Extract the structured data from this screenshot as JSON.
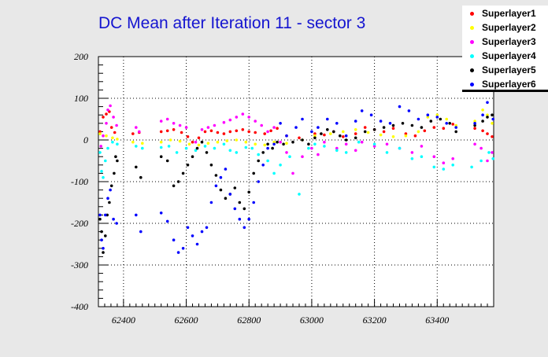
{
  "chart_data": {
    "type": "scatter",
    "title": "DC Mean after Iteration 11 - sector 3",
    "xlabel": "",
    "ylabel": "",
    "xlim": [
      62320,
      63580
    ],
    "ylim": [
      -400,
      200
    ],
    "grid": true,
    "legend_position": "top-right",
    "x_ticks": [
      62400,
      62600,
      62800,
      63000,
      63200,
      63400
    ],
    "y_ticks": [
      -400,
      -300,
      -200,
      -100,
      0,
      100,
      200
    ],
    "series": [
      {
        "name": "Superlayer1",
        "color": "#ff0000",
        "points": [
          [
            62325,
            20
          ],
          [
            62335,
            55
          ],
          [
            62345,
            62
          ],
          [
            62355,
            68
          ],
          [
            62362,
            30
          ],
          [
            62372,
            18
          ],
          [
            62430,
            15
          ],
          [
            62450,
            18
          ],
          [
            62520,
            20
          ],
          [
            62540,
            22
          ],
          [
            62560,
            25
          ],
          [
            62585,
            18
          ],
          [
            62605,
            8
          ],
          [
            62620,
            -5
          ],
          [
            62640,
            5
          ],
          [
            62660,
            20
          ],
          [
            62680,
            22
          ],
          [
            62700,
            18
          ],
          [
            62720,
            15
          ],
          [
            62740,
            20
          ],
          [
            62760,
            22
          ],
          [
            62780,
            25
          ],
          [
            62800,
            20
          ],
          [
            62820,
            18
          ],
          [
            62850,
            15
          ],
          [
            62870,
            22
          ],
          [
            62890,
            28
          ],
          [
            62920,
            10
          ],
          [
            62960,
            5
          ],
          [
            63010,
            15
          ],
          [
            63040,
            12
          ],
          [
            63070,
            20
          ],
          [
            63100,
            8
          ],
          [
            63140,
            15
          ],
          [
            63170,
            30
          ],
          [
            63200,
            25
          ],
          [
            63230,
            20
          ],
          [
            63260,
            28
          ],
          [
            63300,
            15
          ],
          [
            63330,
            10
          ],
          [
            63360,
            22
          ],
          [
            63390,
            30
          ],
          [
            63420,
            28
          ],
          [
            63450,
            38
          ],
          [
            63520,
            28
          ],
          [
            63545,
            22
          ],
          [
            63560,
            15
          ],
          [
            63575,
            8
          ]
        ]
      },
      {
        "name": "Superlayer2",
        "color": "#ffff00",
        "points": [
          [
            62325,
            15
          ],
          [
            62345,
            10
          ],
          [
            62365,
            5
          ],
          [
            62380,
            2
          ],
          [
            62430,
            -5
          ],
          [
            62460,
            -8
          ],
          [
            62520,
            -5
          ],
          [
            62550,
            0
          ],
          [
            62580,
            -3
          ],
          [
            62610,
            -10
          ],
          [
            62640,
            -12
          ],
          [
            62670,
            -8
          ],
          [
            62700,
            -5
          ],
          [
            62730,
            -2
          ],
          [
            62760,
            0
          ],
          [
            62790,
            -5
          ],
          [
            62820,
            -10
          ],
          [
            62850,
            -12
          ],
          [
            62880,
            -5
          ],
          [
            62920,
            -8
          ],
          [
            62970,
            0
          ],
          [
            63010,
            10
          ],
          [
            63060,
            15
          ],
          [
            63100,
            20
          ],
          [
            63140,
            25
          ],
          [
            63180,
            18
          ],
          [
            63220,
            12
          ],
          [
            63260,
            8
          ],
          [
            63300,
            10
          ],
          [
            63340,
            20
          ],
          [
            63370,
            55
          ],
          [
            63400,
            60
          ],
          [
            63430,
            50
          ],
          [
            63460,
            35
          ],
          [
            63520,
            45
          ],
          [
            63545,
            72
          ],
          [
            63560,
            60
          ],
          [
            63575,
            40
          ]
        ]
      },
      {
        "name": "Superlayer3",
        "color": "#ff00ff",
        "points": [
          [
            62328,
            -15
          ],
          [
            62335,
            10
          ],
          [
            62345,
            40
          ],
          [
            62350,
            72
          ],
          [
            62358,
            82
          ],
          [
            62368,
            55
          ],
          [
            62378,
            35
          ],
          [
            62440,
            30
          ],
          [
            62450,
            20
          ],
          [
            62520,
            45
          ],
          [
            62540,
            50
          ],
          [
            62560,
            40
          ],
          [
            62580,
            35
          ],
          [
            62600,
            30
          ],
          [
            62630,
            -5
          ],
          [
            62650,
            25
          ],
          [
            62670,
            30
          ],
          [
            62690,
            35
          ],
          [
            62720,
            42
          ],
          [
            62740,
            48
          ],
          [
            62760,
            55
          ],
          [
            62780,
            62
          ],
          [
            62800,
            55
          ],
          [
            62820,
            45
          ],
          [
            62840,
            35
          ],
          [
            62860,
            20
          ],
          [
            62880,
            30
          ],
          [
            62900,
            -5
          ],
          [
            62920,
            -30
          ],
          [
            62940,
            -80
          ],
          [
            62970,
            -40
          ],
          [
            63000,
            -20
          ],
          [
            63020,
            -35
          ],
          [
            63040,
            -5
          ],
          [
            63080,
            -20
          ],
          [
            63110,
            -10
          ],
          [
            63140,
            -25
          ],
          [
            63160,
            -5
          ],
          [
            63200,
            -15
          ],
          [
            63240,
            -10
          ],
          [
            63280,
            -20
          ],
          [
            63320,
            -30
          ],
          [
            63350,
            -15
          ],
          [
            63390,
            -40
          ],
          [
            63420,
            -55
          ],
          [
            63450,
            -45
          ],
          [
            63520,
            -10
          ],
          [
            63540,
            -20
          ],
          [
            63560,
            -50
          ],
          [
            63575,
            -30
          ]
        ]
      },
      {
        "name": "Superlayer4",
        "color": "#00ffff",
        "points": [
          [
            62325,
            -30
          ],
          [
            62330,
            -75
          ],
          [
            62335,
            -90
          ],
          [
            62342,
            -50
          ],
          [
            62350,
            -20
          ],
          [
            62365,
            -5
          ],
          [
            62380,
            -10
          ],
          [
            62440,
            -15
          ],
          [
            62460,
            -20
          ],
          [
            62520,
            -18
          ],
          [
            62545,
            -15
          ],
          [
            62570,
            -30
          ],
          [
            62600,
            -20
          ],
          [
            62630,
            -25
          ],
          [
            62660,
            -15
          ],
          [
            62690,
            -20
          ],
          [
            62720,
            -10
          ],
          [
            62740,
            -25
          ],
          [
            62760,
            -30
          ],
          [
            62790,
            -18
          ],
          [
            62810,
            -20
          ],
          [
            62830,
            -35
          ],
          [
            62860,
            -50
          ],
          [
            62880,
            -80
          ],
          [
            62900,
            -60
          ],
          [
            62930,
            -40
          ],
          [
            62960,
            -130
          ],
          [
            62990,
            -20
          ],
          [
            63010,
            -10
          ],
          [
            63040,
            -15
          ],
          [
            63080,
            -25
          ],
          [
            63110,
            -30
          ],
          [
            63150,
            -5
          ],
          [
            63200,
            -10
          ],
          [
            63240,
            -30
          ],
          [
            63280,
            -20
          ],
          [
            63320,
            -45
          ],
          [
            63350,
            -40
          ],
          [
            63390,
            -65
          ],
          [
            63420,
            -70
          ],
          [
            63450,
            -60
          ],
          [
            63510,
            -65
          ],
          [
            63540,
            -50
          ],
          [
            63565,
            -30
          ],
          [
            63578,
            -45
          ]
        ]
      },
      {
        "name": "Superlayer5",
        "color": "#000000",
        "points": [
          [
            62325,
            -190
          ],
          [
            62330,
            -220
          ],
          [
            62335,
            -270
          ],
          [
            62342,
            -230
          ],
          [
            62348,
            -180
          ],
          [
            62355,
            -150
          ],
          [
            62362,
            -110
          ],
          [
            62370,
            -80
          ],
          [
            62375,
            -40
          ],
          [
            62380,
            -50
          ],
          [
            62440,
            -65
          ],
          [
            62455,
            -90
          ],
          [
            62520,
            -40
          ],
          [
            62540,
            -50
          ],
          [
            62560,
            -110
          ],
          [
            62575,
            -100
          ],
          [
            62590,
            -80
          ],
          [
            62605,
            -60
          ],
          [
            62620,
            -40
          ],
          [
            62635,
            -20
          ],
          [
            62650,
            -5
          ],
          [
            62665,
            -30
          ],
          [
            62680,
            -60
          ],
          [
            62695,
            -85
          ],
          [
            62710,
            -120
          ],
          [
            62725,
            -140
          ],
          [
            62740,
            -130
          ],
          [
            62755,
            -115
          ],
          [
            62770,
            -150
          ],
          [
            62785,
            -165
          ],
          [
            62800,
            -125
          ],
          [
            62815,
            -80
          ],
          [
            62830,
            -50
          ],
          [
            62845,
            -30
          ],
          [
            62860,
            -10
          ],
          [
            62875,
            -20
          ],
          [
            62890,
            -5
          ],
          [
            62910,
            -10
          ],
          [
            62940,
            -5
          ],
          [
            62970,
            0
          ],
          [
            62990,
            -10
          ],
          [
            63010,
            5
          ],
          [
            63030,
            15
          ],
          [
            63050,
            25
          ],
          [
            63070,
            20
          ],
          [
            63090,
            10
          ],
          [
            63110,
            0
          ],
          [
            63140,
            5
          ],
          [
            63170,
            20
          ],
          [
            63200,
            25
          ],
          [
            63230,
            30
          ],
          [
            63260,
            35
          ],
          [
            63290,
            40
          ],
          [
            63320,
            35
          ],
          [
            63350,
            30
          ],
          [
            63380,
            45
          ],
          [
            63410,
            50
          ],
          [
            63440,
            40
          ],
          [
            63460,
            20
          ],
          [
            63520,
            35
          ],
          [
            63545,
            45
          ],
          [
            63560,
            55
          ],
          [
            63575,
            60
          ]
        ]
      },
      {
        "name": "Superlayer6",
        "color": "#0000ff",
        "points": [
          [
            62325,
            -180
          ],
          [
            62330,
            -240
          ],
          [
            62335,
            -260
          ],
          [
            62342,
            -180
          ],
          [
            62350,
            -140
          ],
          [
            62358,
            -120
          ],
          [
            62368,
            -190
          ],
          [
            62378,
            -200
          ],
          [
            62440,
            -180
          ],
          [
            62455,
            -220
          ],
          [
            62520,
            -175
          ],
          [
            62540,
            -195
          ],
          [
            62560,
            -240
          ],
          [
            62575,
            -270
          ],
          [
            62590,
            -260
          ],
          [
            62605,
            -210
          ],
          [
            62620,
            -230
          ],
          [
            62635,
            -250
          ],
          [
            62650,
            -220
          ],
          [
            62665,
            -210
          ],
          [
            62680,
            -150
          ],
          [
            62695,
            -110
          ],
          [
            62710,
            -90
          ],
          [
            62725,
            -70
          ],
          [
            62740,
            -130
          ],
          [
            62755,
            -165
          ],
          [
            62770,
            -190
          ],
          [
            62785,
            -210
          ],
          [
            62800,
            -190
          ],
          [
            62815,
            -150
          ],
          [
            62830,
            -100
          ],
          [
            62845,
            -60
          ],
          [
            62860,
            -20
          ],
          [
            62880,
            -10
          ],
          [
            62900,
            40
          ],
          [
            62920,
            10
          ],
          [
            62950,
            30
          ],
          [
            62970,
            50
          ],
          [
            63000,
            20
          ],
          [
            63020,
            30
          ],
          [
            63050,
            50
          ],
          [
            63080,
            40
          ],
          [
            63110,
            10
          ],
          [
            63140,
            45
          ],
          [
            63160,
            70
          ],
          [
            63190,
            60
          ],
          [
            63220,
            45
          ],
          [
            63250,
            40
          ],
          [
            63280,
            80
          ],
          [
            63310,
            70
          ],
          [
            63340,
            50
          ],
          [
            63370,
            60
          ],
          [
            63400,
            55
          ],
          [
            63430,
            40
          ],
          [
            63460,
            30
          ],
          [
            63520,
            40
          ],
          [
            63545,
            60
          ],
          [
            63560,
            90
          ],
          [
            63578,
            50
          ]
        ]
      }
    ]
  }
}
